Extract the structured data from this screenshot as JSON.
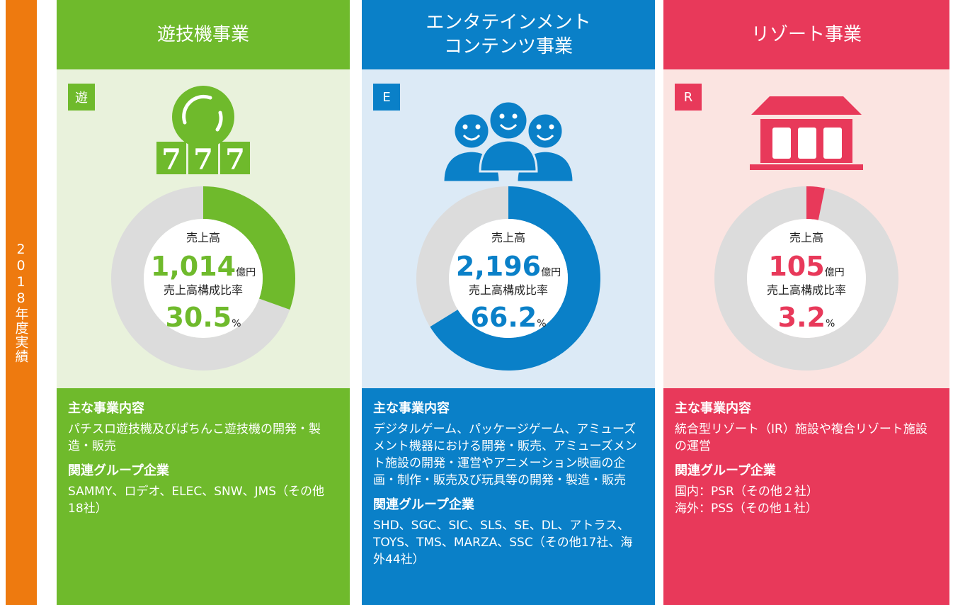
{
  "side_label": "2018年度実績",
  "panels": [
    {
      "title": [
        "遊技機事業"
      ],
      "badge": "遊",
      "icon_text": [
        "7",
        "7",
        "7"
      ],
      "color": "#6fba2c",
      "light": "#e9f2dc",
      "sales_label": "売上高",
      "sales": "1,014",
      "sales_unit": "億円",
      "share_label": "売上高構成比率",
      "share": 30.5,
      "share_unit": "%",
      "content_heading": "主な事業内容",
      "content": "パチスロ遊技機及びぱちんこ遊技機の開発・製造・販売",
      "group_heading": "関連グループ企業",
      "group": [
        "SAMMY、ロデオ、ELEC、SNW、JMS（その他18社）"
      ]
    },
    {
      "title": [
        "エンタテインメント",
        "コンテンツ事業"
      ],
      "badge": "E",
      "icon_text": [],
      "color": "#0a80c8",
      "light": "#dceaf6",
      "sales_label": "売上高",
      "sales": "2,196",
      "sales_unit": "億円",
      "share_label": "売上高構成比率",
      "share": 66.2,
      "share_unit": "%",
      "content_heading": "主な事業内容",
      "content": "デジタルゲーム、パッケージゲーム、アミューズメント機器における開発・販売、アミューズメント施設の開発・運営やアニメーション映画の企画・制作・販売及び玩具等の開発・製造・販売",
      "group_heading": "関連グループ企業",
      "group": [
        "SHD、SGC、SIC、SLS、SE、DL、アトラス、TOYS、TMS、MARZA、SSC（その他17社、海外44社）"
      ]
    },
    {
      "title": [
        "リゾート事業"
      ],
      "badge": "R",
      "icon_text": [],
      "color": "#e8395a",
      "light": "#fbe4e1",
      "sales_label": "売上高",
      "sales": "105",
      "sales_unit": "億円",
      "share_label": "売上高構成比率",
      "share": 3.2,
      "share_unit": "%",
      "content_heading": "主な事業内容",
      "content": "統合型リゾート（IR）施設や複合リゾート施設の運営",
      "group_heading": "関連グループ企業",
      "group": [
        "国内：PSR（その他２社）",
        "海外：PSS（その他１社）"
      ]
    }
  ]
}
